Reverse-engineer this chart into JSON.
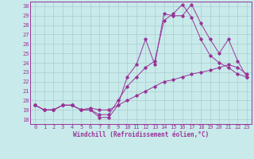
{
  "title": "",
  "xlabel": "Windchill (Refroidissement éolien,°C)",
  "ylabel": "",
  "bg_color": "#c8eaea",
  "grid_color": "#aacccc",
  "line_color": "#993399",
  "xlim": [
    -0.5,
    23.5
  ],
  "ylim": [
    17.5,
    30.5
  ],
  "xticks": [
    0,
    1,
    2,
    3,
    4,
    5,
    6,
    7,
    8,
    9,
    10,
    11,
    12,
    13,
    14,
    15,
    16,
    17,
    18,
    19,
    20,
    21,
    22,
    23
  ],
  "yticks": [
    18,
    19,
    20,
    21,
    22,
    23,
    24,
    25,
    26,
    27,
    28,
    29,
    30
  ],
  "line1_x": [
    0,
    1,
    2,
    3,
    4,
    5,
    6,
    7,
    8,
    9,
    10,
    11,
    12,
    13,
    14,
    15,
    16,
    17,
    18,
    19,
    20,
    21,
    22,
    23
  ],
  "line1_y": [
    19.5,
    19.0,
    19.0,
    19.5,
    19.5,
    19.0,
    19.0,
    18.2,
    18.2,
    19.5,
    22.5,
    23.8,
    26.5,
    23.8,
    29.2,
    29.0,
    29.0,
    30.2,
    28.2,
    26.5,
    25.0,
    26.5,
    24.2,
    22.5
  ],
  "line2_x": [
    0,
    1,
    2,
    3,
    4,
    5,
    6,
    7,
    8,
    9,
    10,
    11,
    12,
    13,
    14,
    15,
    16,
    17,
    18,
    19,
    20,
    21,
    22,
    23
  ],
  "line2_y": [
    19.5,
    19.0,
    19.0,
    19.5,
    19.5,
    19.0,
    19.0,
    18.5,
    18.5,
    20.0,
    21.5,
    22.5,
    23.5,
    24.2,
    28.5,
    29.2,
    30.2,
    28.8,
    26.5,
    24.8,
    24.0,
    23.5,
    22.8,
    22.5
  ],
  "line3_x": [
    0,
    1,
    2,
    3,
    4,
    5,
    6,
    7,
    8,
    9,
    10,
    11,
    12,
    13,
    14,
    15,
    16,
    17,
    18,
    19,
    20,
    21,
    22,
    23
  ],
  "line3_y": [
    19.5,
    19.0,
    19.0,
    19.5,
    19.5,
    19.0,
    19.2,
    19.0,
    19.0,
    19.5,
    20.0,
    20.5,
    21.0,
    21.5,
    22.0,
    22.2,
    22.5,
    22.8,
    23.0,
    23.2,
    23.5,
    23.8,
    23.5,
    22.8
  ],
  "tick_fontsize": 5.0,
  "xlabel_fontsize": 5.5
}
